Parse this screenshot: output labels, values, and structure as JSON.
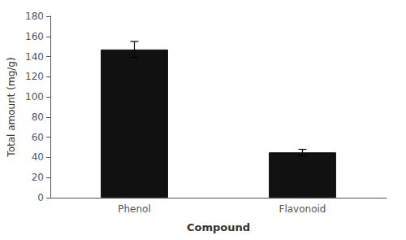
{
  "chart_data": {
    "type": "bar",
    "categories": [
      "Phenol",
      "Flavonoid"
    ],
    "values": [
      147,
      45
    ],
    "errors": [
      8,
      3
    ],
    "color": "#111111",
    "xlabel": "Compound",
    "ylabel": "Total amount (mg/g)",
    "ylim": [
      0,
      180
    ],
    "yticks": [
      0,
      20,
      40,
      60,
      80,
      100,
      120,
      140,
      160,
      180
    ],
    "grid": false
  }
}
